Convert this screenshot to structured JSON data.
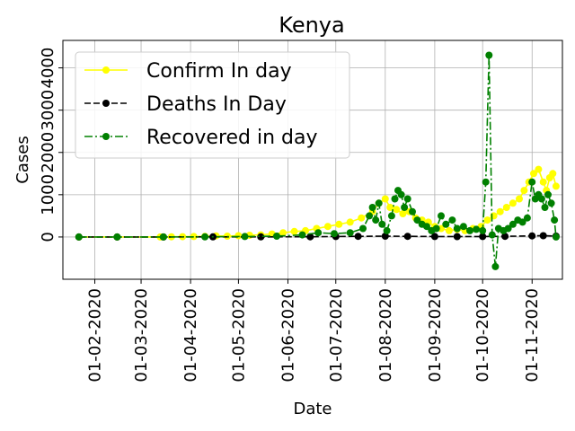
{
  "chart_data": {
    "type": "line",
    "title": "Kenya",
    "xlabel": "Date",
    "ylabel": "Cases",
    "x_range": [
      "2020-01-12",
      "2020-11-20"
    ],
    "ylim": [
      -1000,
      4650
    ],
    "x_ticks": [
      {
        "date": "2020-02-01",
        "label": "01-02-2020"
      },
      {
        "date": "2020-03-01",
        "label": "01-03-2020"
      },
      {
        "date": "2020-04-01",
        "label": "01-04-2020"
      },
      {
        "date": "2020-05-01",
        "label": "01-05-2020"
      },
      {
        "date": "2020-06-01",
        "label": "01-06-2020"
      },
      {
        "date": "2020-07-01",
        "label": "01-07-2020"
      },
      {
        "date": "2020-08-01",
        "label": "01-08-2020"
      },
      {
        "date": "2020-09-01",
        "label": "01-09-2020"
      },
      {
        "date": "2020-10-01",
        "label": "01-10-2020"
      },
      {
        "date": "2020-11-01",
        "label": "01-11-2020"
      }
    ],
    "y_ticks": [
      {
        "value": 0,
        "label": "0"
      },
      {
        "value": 1000,
        "label": "1000"
      },
      {
        "value": 2000,
        "label": "2000"
      },
      {
        "value": 3000,
        "label": "3000"
      },
      {
        "value": 4000,
        "label": "4000"
      }
    ],
    "grid": true,
    "legend_position": "top-left",
    "series": [
      {
        "name": "Confirm In day",
        "color": "#ffff00",
        "line_style": "solid",
        "marker": "circle",
        "points": [
          [
            "2020-01-22",
            0
          ],
          [
            "2020-02-15",
            0
          ],
          [
            "2020-03-13",
            1
          ],
          [
            "2020-03-20",
            4
          ],
          [
            "2020-03-27",
            7
          ],
          [
            "2020-04-03",
            12
          ],
          [
            "2020-04-10",
            15
          ],
          [
            "2020-04-17",
            25
          ],
          [
            "2020-04-24",
            20
          ],
          [
            "2020-05-01",
            30
          ],
          [
            "2020-05-08",
            40
          ],
          [
            "2020-05-15",
            50
          ],
          [
            "2020-05-22",
            70
          ],
          [
            "2020-05-29",
            100
          ],
          [
            "2020-06-05",
            130
          ],
          [
            "2020-06-12",
            150
          ],
          [
            "2020-06-19",
            200
          ],
          [
            "2020-06-26",
            250
          ],
          [
            "2020-07-03",
            300
          ],
          [
            "2020-07-10",
            350
          ],
          [
            "2020-07-17",
            450
          ],
          [
            "2020-07-24",
            600
          ],
          [
            "2020-07-28",
            800
          ],
          [
            "2020-08-01",
            900
          ],
          [
            "2020-08-04",
            700
          ],
          [
            "2020-08-08",
            650
          ],
          [
            "2020-08-12",
            550
          ],
          [
            "2020-08-16",
            600
          ],
          [
            "2020-08-20",
            450
          ],
          [
            "2020-08-24",
            400
          ],
          [
            "2020-08-28",
            350
          ],
          [
            "2020-09-01",
            250
          ],
          [
            "2020-09-05",
            200
          ],
          [
            "2020-09-10",
            150
          ],
          [
            "2020-09-15",
            180
          ],
          [
            "2020-09-20",
            150
          ],
          [
            "2020-09-25",
            200
          ],
          [
            "2020-09-30",
            250
          ],
          [
            "2020-10-04",
            400
          ],
          [
            "2020-10-08",
            500
          ],
          [
            "2020-10-12",
            600
          ],
          [
            "2020-10-16",
            700
          ],
          [
            "2020-10-20",
            800
          ],
          [
            "2020-10-24",
            900
          ],
          [
            "2020-10-27",
            1100
          ],
          [
            "2020-10-30",
            1300
          ],
          [
            "2020-11-02",
            1500
          ],
          [
            "2020-11-05",
            1600
          ],
          [
            "2020-11-08",
            1300
          ],
          [
            "2020-11-10",
            1100
          ],
          [
            "2020-11-12",
            1400
          ],
          [
            "2020-11-14",
            1500
          ],
          [
            "2020-11-16",
            1200
          ]
        ]
      },
      {
        "name": "Deaths In Day",
        "color": "#000000",
        "line_style": "dashed",
        "marker": "circle",
        "points": [
          [
            "2020-01-22",
            0
          ],
          [
            "2020-02-15",
            0
          ],
          [
            "2020-03-15",
            0
          ],
          [
            "2020-04-15",
            2
          ],
          [
            "2020-05-15",
            3
          ],
          [
            "2020-06-15",
            5
          ],
          [
            "2020-07-01",
            10
          ],
          [
            "2020-07-15",
            15
          ],
          [
            "2020-08-01",
            20
          ],
          [
            "2020-08-15",
            15
          ],
          [
            "2020-09-01",
            10
          ],
          [
            "2020-09-15",
            8
          ],
          [
            "2020-10-01",
            10
          ],
          [
            "2020-10-15",
            15
          ],
          [
            "2020-11-01",
            25
          ],
          [
            "2020-11-08",
            30
          ],
          [
            "2020-11-16",
            20
          ]
        ]
      },
      {
        "name": "Recovered in day",
        "color": "#008000",
        "line_style": "dashdot",
        "marker": "circle",
        "points": [
          [
            "2020-01-22",
            0
          ],
          [
            "2020-02-15",
            0
          ],
          [
            "2020-03-15",
            0
          ],
          [
            "2020-04-10",
            2
          ],
          [
            "2020-05-05",
            10
          ],
          [
            "2020-05-25",
            20
          ],
          [
            "2020-06-10",
            50
          ],
          [
            "2020-06-20",
            100
          ],
          [
            "2020-06-30",
            80
          ],
          [
            "2020-07-10",
            100
          ],
          [
            "2020-07-18",
            200
          ],
          [
            "2020-07-22",
            500
          ],
          [
            "2020-07-24",
            700
          ],
          [
            "2020-07-26",
            400
          ],
          [
            "2020-07-28",
            800
          ],
          [
            "2020-07-30",
            300
          ],
          [
            "2020-08-02",
            150
          ],
          [
            "2020-08-05",
            500
          ],
          [
            "2020-08-07",
            900
          ],
          [
            "2020-08-09",
            1100
          ],
          [
            "2020-08-11",
            1000
          ],
          [
            "2020-08-13",
            700
          ],
          [
            "2020-08-15",
            900
          ],
          [
            "2020-08-18",
            600
          ],
          [
            "2020-08-21",
            400
          ],
          [
            "2020-08-24",
            300
          ],
          [
            "2020-08-27",
            250
          ],
          [
            "2020-08-30",
            150
          ],
          [
            "2020-09-02",
            200
          ],
          [
            "2020-09-05",
            500
          ],
          [
            "2020-09-08",
            300
          ],
          [
            "2020-09-12",
            400
          ],
          [
            "2020-09-15",
            200
          ],
          [
            "2020-09-19",
            250
          ],
          [
            "2020-09-23",
            150
          ],
          [
            "2020-09-27",
            180
          ],
          [
            "2020-10-01",
            150
          ],
          [
            "2020-10-03",
            1300
          ],
          [
            "2020-10-05",
            4300
          ],
          [
            "2020-10-07",
            50
          ],
          [
            "2020-10-09",
            -700
          ],
          [
            "2020-10-11",
            200
          ],
          [
            "2020-10-14",
            150
          ],
          [
            "2020-10-17",
            200
          ],
          [
            "2020-10-20",
            300
          ],
          [
            "2020-10-23",
            400
          ],
          [
            "2020-10-26",
            350
          ],
          [
            "2020-10-29",
            450
          ],
          [
            "2020-11-01",
            1300
          ],
          [
            "2020-11-03",
            900
          ],
          [
            "2020-11-05",
            1000
          ],
          [
            "2020-11-07",
            900
          ],
          [
            "2020-11-09",
            700
          ],
          [
            "2020-11-11",
            1000
          ],
          [
            "2020-11-13",
            800
          ],
          [
            "2020-11-15",
            400
          ],
          [
            "2020-11-16",
            0
          ]
        ]
      }
    ]
  }
}
